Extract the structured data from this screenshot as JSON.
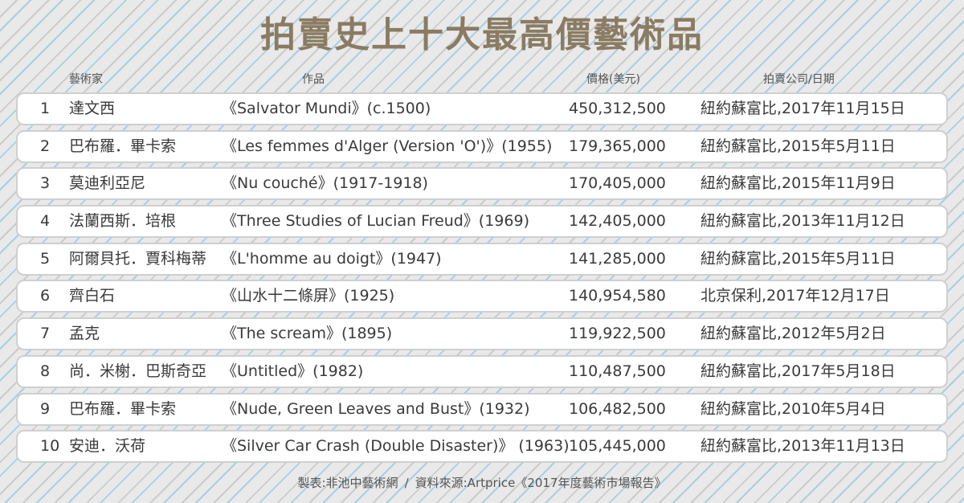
{
  "title": "拍賣史上十大最高價藝術品",
  "headers": {
    "artist": "藝術家",
    "work": "作品",
    "price": "價格(美元)",
    "auction": "拍賣公司/日期"
  },
  "rows": [
    {
      "rank": "1",
      "artist": "達文西",
      "work": "《Salvator Mundi》(c.1500)",
      "price": "450,312,500",
      "auction": "紐約蘇富比,2017年11月15日"
    },
    {
      "rank": "2",
      "artist": "巴布羅．畢卡索",
      "work": "《Les femmes d'Alger (Version 'O')》(1955)",
      "price": "179,365,000",
      "auction": "紐約蘇富比,2015年5月11日"
    },
    {
      "rank": "3",
      "artist": "莫迪利亞尼",
      "work": "《Nu couché》(1917-1918)",
      "price": "170,405,000",
      "auction": "紐約蘇富比,2015年11月9日"
    },
    {
      "rank": "4",
      "artist": "法蘭西斯．培根",
      "work": "《Three Studies of Lucian Freud》(1969)",
      "price": "142,405,000",
      "auction": "紐約蘇富比,2013年11月12日"
    },
    {
      "rank": "5",
      "artist": "阿爾貝托．賈科梅蒂",
      "work": "《L'homme au doigt》(1947)",
      "price": "141,285,000",
      "auction": "紐約蘇富比,2015年5月11日"
    },
    {
      "rank": "6",
      "artist": "齊白石",
      "work": "《山水十二條屏》(1925)",
      "price": "140,954,580",
      "auction": "北京保利,2017年12月17日"
    },
    {
      "rank": "7",
      "artist": "孟克",
      "work": "《The scream》(1895)",
      "price": "119,922,500",
      "auction": "紐約蘇富比,2012年5月2日"
    },
    {
      "rank": "8",
      "artist": "尚．米榭．巴斯奇亞",
      "work": "《Untitled》(1982)",
      "price": "110,487,500",
      "auction": "紐約蘇富比,2017年5月18日"
    },
    {
      "rank": "9",
      "artist": "巴布羅．畢卡索",
      "work": "《Nude, Green Leaves and Bust》(1932)",
      "price": "106,482,500",
      "auction": "紐約蘇富比,2010年5月4日"
    },
    {
      "rank": "10",
      "artist": "安迪．沃荷",
      "work": "《Silver Car Crash (Double Disaster)》 (1963)",
      "price": "105,445,000",
      "auction": "紐約蘇富比,2013年11月13日"
    }
  ],
  "footer": {
    "maker": "製表:非池中藝術網",
    "separator": "/",
    "source": "資料來源:Artprice《2017年度藝術市場報告》"
  }
}
